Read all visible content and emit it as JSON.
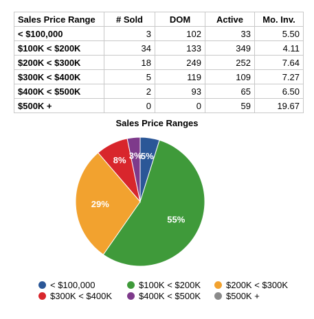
{
  "table": {
    "headers": [
      "Sales Price Range",
      "# Sold",
      "DOM",
      "Active",
      "Mo. Inv."
    ],
    "rows": [
      [
        "< $100,000",
        "3",
        "102",
        "33",
        "5.50"
      ],
      [
        "$100K < $200K",
        "34",
        "133",
        "349",
        "4.11"
      ],
      [
        "$200K < $300K",
        "18",
        "249",
        "252",
        "7.64"
      ],
      [
        "$300K < $400K",
        "5",
        "119",
        "109",
        "7.27"
      ],
      [
        "$400K < $500K",
        "2",
        "93",
        "65",
        "6.50"
      ],
      [
        "$500K +",
        "0",
        "0",
        "59",
        "19.67"
      ]
    ]
  },
  "chart_data": {
    "type": "pie",
    "title": "Sales Price Ranges",
    "categories": [
      "< $100,000",
      "$100K < $200K",
      "$200K < $300K",
      "$300K < $400K",
      "$400K < $500K",
      "$500K +"
    ],
    "values": [
      3,
      34,
      18,
      5,
      2,
      0
    ],
    "labels": [
      "5%",
      "55%",
      "29%",
      "8%",
      "3%",
      ""
    ],
    "colors": [
      "#2B5797",
      "#3F9A3A",
      "#F2A22F",
      "#D8262C",
      "#7E3A8B",
      "#8A8A8A"
    ],
    "start": "top, clockwise",
    "legend_position": "bottom"
  }
}
